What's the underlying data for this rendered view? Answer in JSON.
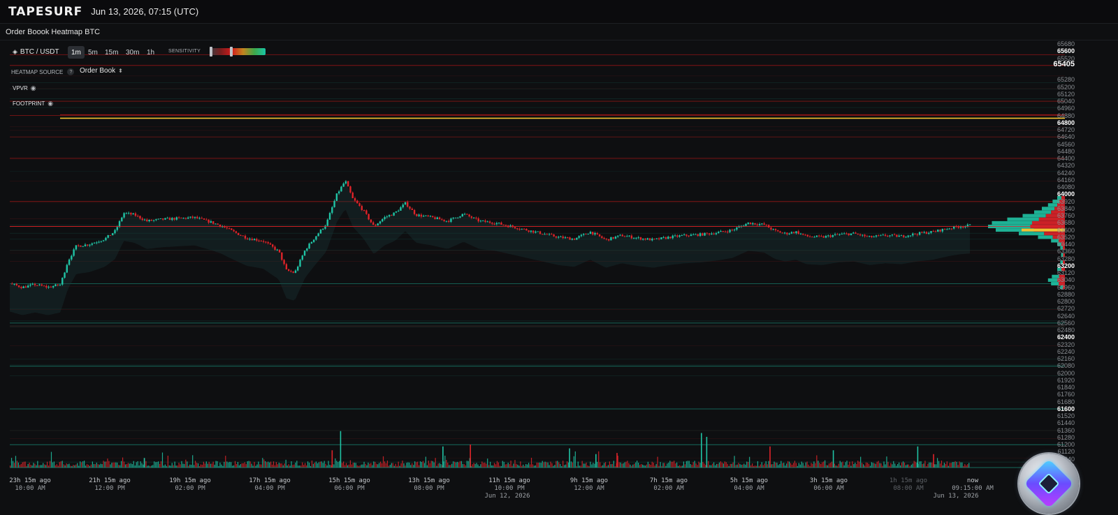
{
  "app": {
    "brand": "TAPESURF",
    "timestamp": "Jun 13, 2026, 07:15 (UTC)",
    "page_title": "Order Boook Heatmap BTC"
  },
  "controls": {
    "pair": "BTC / USDT",
    "pair_icon": "binance-diamond-icon",
    "timeframes": [
      "1m",
      "5m",
      "15m",
      "30m",
      "1h"
    ],
    "active_timeframe": "1m",
    "sensitivity_label": "SENSITIVITY",
    "sensitivity_range": [
      0.0,
      0.38
    ],
    "heatmap_source_label": "HEATMAP SOURCE",
    "heatmap_source_help": "?",
    "heatmap_source_value": "Order Book",
    "vpvr_label": "VPVR",
    "footprint_label": "FOOTPRINT"
  },
  "colors": {
    "background": "#0e0f11",
    "up": "#20c3a4",
    "down": "#e0242a",
    "footprint_line": "#f2c230",
    "heat_red": "#c01818",
    "heat_teal": "#1aa890"
  },
  "price_axis": {
    "last_price": "65405",
    "ticks": [
      {
        "v": "65680",
        "b": false
      },
      {
        "v": "65600",
        "b": true
      },
      {
        "v": "65520",
        "b": false
      },
      {
        "v": "65280",
        "b": false
      },
      {
        "v": "65200",
        "b": false
      },
      {
        "v": "65120",
        "b": false
      },
      {
        "v": "65040",
        "b": false
      },
      {
        "v": "64960",
        "b": false
      },
      {
        "v": "64880",
        "b": false
      },
      {
        "v": "64800",
        "b": true
      },
      {
        "v": "64720",
        "b": false
      },
      {
        "v": "64640",
        "b": false
      },
      {
        "v": "64560",
        "b": false
      },
      {
        "v": "64480",
        "b": false
      },
      {
        "v": "64400",
        "b": false
      },
      {
        "v": "64320",
        "b": false
      },
      {
        "v": "64240",
        "b": false
      },
      {
        "v": "64160",
        "b": false
      },
      {
        "v": "64080",
        "b": false
      },
      {
        "v": "64000",
        "b": true
      },
      {
        "v": "63920",
        "b": false
      },
      {
        "v": "63840",
        "b": false
      },
      {
        "v": "63760",
        "b": false
      },
      {
        "v": "63680",
        "b": false
      },
      {
        "v": "63600",
        "b": false
      },
      {
        "v": "63520",
        "b": false
      },
      {
        "v": "63440",
        "b": false
      },
      {
        "v": "63360",
        "b": false
      },
      {
        "v": "63280",
        "b": false
      },
      {
        "v": "63200",
        "b": true
      },
      {
        "v": "63120",
        "b": false
      },
      {
        "v": "63040",
        "b": false
      },
      {
        "v": "62960",
        "b": false
      },
      {
        "v": "62880",
        "b": false
      },
      {
        "v": "62800",
        "b": false
      },
      {
        "v": "62720",
        "b": false
      },
      {
        "v": "62640",
        "b": false
      },
      {
        "v": "62560",
        "b": false
      },
      {
        "v": "62480",
        "b": false
      },
      {
        "v": "62400",
        "b": true
      },
      {
        "v": "62320",
        "b": false
      },
      {
        "v": "62240",
        "b": false
      },
      {
        "v": "62160",
        "b": false
      },
      {
        "v": "62080",
        "b": false
      },
      {
        "v": "62000",
        "b": false
      },
      {
        "v": "61920",
        "b": false
      },
      {
        "v": "61840",
        "b": false
      },
      {
        "v": "61760",
        "b": false
      },
      {
        "v": "61680",
        "b": false
      },
      {
        "v": "61600",
        "b": true
      },
      {
        "v": "61520",
        "b": false
      },
      {
        "v": "61440",
        "b": false
      },
      {
        "v": "61360",
        "b": false
      },
      {
        "v": "61280",
        "b": false
      },
      {
        "v": "61200",
        "b": false
      },
      {
        "v": "61120",
        "b": false
      },
      {
        "v": "61040",
        "b": false
      },
      {
        "v": "60960",
        "b": false
      }
    ]
  },
  "time_axis": [
    {
      "ago": "23h 15m ago",
      "time": "10:00 AM",
      "dim": false
    },
    {
      "ago": "21h 15m ago",
      "time": "12:00 PM",
      "dim": false
    },
    {
      "ago": "19h 15m ago",
      "time": "02:00 PM",
      "dim": false
    },
    {
      "ago": "17h 15m ago",
      "time": "04:00 PM",
      "dim": false
    },
    {
      "ago": "15h 15m ago",
      "time": "06:00 PM",
      "dim": false
    },
    {
      "ago": "13h 15m ago",
      "time": "08:00 PM",
      "dim": false
    },
    {
      "ago": "11h 15m ago",
      "time": "10:00 PM",
      "dim": false
    },
    {
      "ago": "9h 15m ago",
      "time": "12:00 AM",
      "dim": false
    },
    {
      "ago": "7h 15m ago",
      "time": "02:00 AM",
      "dim": false
    },
    {
      "ago": "5h 15m ago",
      "time": "04:00 AM",
      "dim": false
    },
    {
      "ago": "3h 15m ago",
      "time": "06:00 AM",
      "dim": false
    },
    {
      "ago": "1h 15m ago",
      "time": "08:00 AM",
      "dim": true
    },
    {
      "ago": "now",
      "time": "09:15:00 AM",
      "dim": false
    }
  ],
  "date_labels": [
    "Jun 12, 2026",
    "Jun 13, 2026"
  ],
  "chart_data": {
    "type": "candlestick-heatmap",
    "symbol": "BTC / USDT",
    "price_path": [
      [
        0,
        63000
      ],
      [
        0.012,
        62960
      ],
      [
        0.024,
        62990
      ],
      [
        0.036,
        62960
      ],
      [
        0.048,
        62990
      ],
      [
        0.055,
        63250
      ],
      [
        0.063,
        63420
      ],
      [
        0.075,
        63440
      ],
      [
        0.09,
        63500
      ],
      [
        0.1,
        63590
      ],
      [
        0.108,
        63790
      ],
      [
        0.118,
        63770
      ],
      [
        0.13,
        63700
      ],
      [
        0.145,
        63720
      ],
      [
        0.16,
        63730
      ],
      [
        0.175,
        63740
      ],
      [
        0.19,
        63690
      ],
      [
        0.2,
        63650
      ],
      [
        0.212,
        63580
      ],
      [
        0.225,
        63510
      ],
      [
        0.24,
        63480
      ],
      [
        0.255,
        63360
      ],
      [
        0.262,
        63150
      ],
      [
        0.27,
        63120
      ],
      [
        0.28,
        63380
      ],
      [
        0.29,
        63530
      ],
      [
        0.3,
        63670
      ],
      [
        0.31,
        64000
      ],
      [
        0.318,
        64150
      ],
      [
        0.325,
        63950
      ],
      [
        0.335,
        63820
      ],
      [
        0.345,
        63640
      ],
      [
        0.355,
        63740
      ],
      [
        0.365,
        63790
      ],
      [
        0.375,
        63900
      ],
      [
        0.385,
        63770
      ],
      [
        0.4,
        63740
      ],
      [
        0.415,
        63700
      ],
      [
        0.43,
        63780
      ],
      [
        0.445,
        63700
      ],
      [
        0.46,
        63680
      ],
      [
        0.475,
        63640
      ],
      [
        0.49,
        63600
      ],
      [
        0.505,
        63560
      ],
      [
        0.52,
        63520
      ],
      [
        0.535,
        63500
      ],
      [
        0.55,
        63580
      ],
      [
        0.565,
        63490
      ],
      [
        0.58,
        63540
      ],
      [
        0.595,
        63510
      ],
      [
        0.61,
        63490
      ],
      [
        0.625,
        63520
      ],
      [
        0.64,
        63540
      ],
      [
        0.655,
        63550
      ],
      [
        0.67,
        63570
      ],
      [
        0.685,
        63600
      ],
      [
        0.7,
        63680
      ],
      [
        0.715,
        63660
      ],
      [
        0.725,
        63590
      ],
      [
        0.735,
        63560
      ],
      [
        0.745,
        63580
      ],
      [
        0.755,
        63530
      ],
      [
        0.77,
        63520
      ],
      [
        0.785,
        63550
      ],
      [
        0.8,
        63560
      ],
      [
        0.815,
        63520
      ],
      [
        0.83,
        63540
      ],
      [
        0.845,
        63530
      ],
      [
        0.86,
        63560
      ],
      [
        0.875,
        63580
      ],
      [
        0.89,
        63620
      ],
      [
        0.9,
        63640
      ],
      [
        0.91,
        63650
      ]
    ],
    "volume_spikes": [
      [
        0.127,
        0.25
      ],
      [
        0.305,
        0.45
      ],
      [
        0.313,
        0.95
      ],
      [
        0.41,
        0.55
      ],
      [
        0.436,
        0.6
      ],
      [
        0.53,
        0.5
      ],
      [
        0.555,
        0.35
      ],
      [
        0.575,
        0.38
      ],
      [
        0.655,
        0.9
      ],
      [
        0.66,
        0.8
      ],
      [
        0.72,
        0.55
      ],
      [
        0.78,
        0.45
      ],
      [
        0.86,
        0.55
      ],
      [
        0.875,
        0.35
      ]
    ],
    "vpvr_profile": [
      [
        63960,
        0.1
      ],
      [
        63920,
        0.16
      ],
      [
        63880,
        0.22
      ],
      [
        63840,
        0.3
      ],
      [
        63800,
        0.4
      ],
      [
        63760,
        0.55
      ],
      [
        63720,
        0.75
      ],
      [
        63680,
        0.95
      ],
      [
        63640,
        1.0
      ],
      [
        63600,
        0.9
      ],
      [
        63560,
        0.6
      ],
      [
        63520,
        0.35
      ],
      [
        63480,
        0.18
      ],
      [
        63440,
        0.1
      ],
      [
        63400,
        0.06
      ],
      [
        63320,
        0.05
      ],
      [
        63240,
        0.06
      ],
      [
        63160,
        0.1
      ],
      [
        63080,
        0.17
      ],
      [
        63040,
        0.22
      ],
      [
        63000,
        0.18
      ],
      [
        62960,
        0.06
      ]
    ],
    "heat_levels": [
      {
        "price": 65560,
        "color": "red",
        "strength": 0.55
      },
      {
        "price": 65440,
        "color": "red",
        "strength": 0.65
      },
      {
        "price": 65040,
        "color": "red",
        "strength": 0.5
      },
      {
        "price": 64880,
        "color": "red",
        "strength": 0.55
      },
      {
        "price": 64850,
        "color": "yellow",
        "strength": 1.0
      },
      {
        "price": 64640,
        "color": "red",
        "strength": 0.45
      },
      {
        "price": 64400,
        "color": "red",
        "strength": 0.55
      },
      {
        "price": 63920,
        "color": "red",
        "strength": 0.6
      },
      {
        "price": 63640,
        "color": "red",
        "strength": 0.7
      },
      {
        "price": 63000,
        "color": "teal",
        "strength": 0.5
      },
      {
        "price": 62560,
        "color": "teal",
        "strength": 0.55
      },
      {
        "price": 62080,
        "color": "teal",
        "strength": 0.5
      },
      {
        "price": 61600,
        "color": "teal",
        "strength": 0.55
      },
      {
        "price": 61200,
        "color": "teal",
        "strength": 0.6
      }
    ],
    "grid": false
  }
}
